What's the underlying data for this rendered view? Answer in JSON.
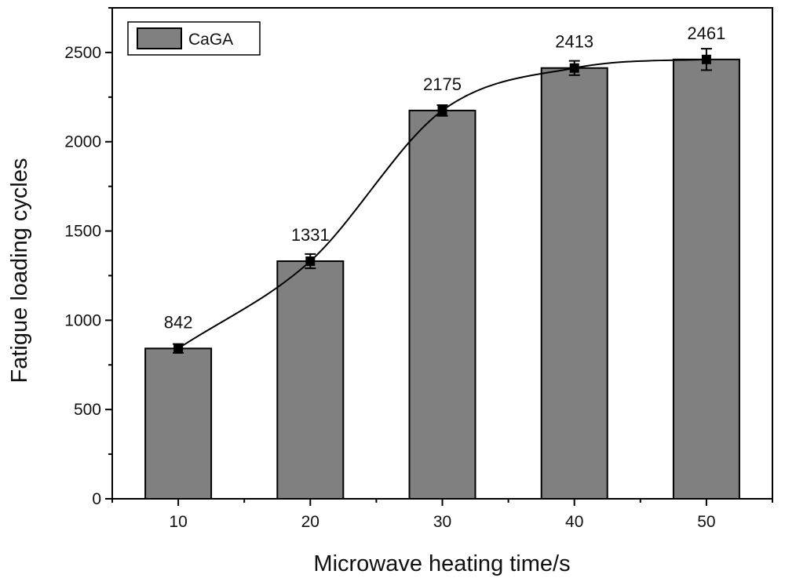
{
  "chart_data": {
    "type": "bar",
    "title": "",
    "xlabel": "Microwave heating time/s",
    "ylabel": "Fatigue loading cycles",
    "categories": [
      "10",
      "20",
      "30",
      "40",
      "50"
    ],
    "series": [
      {
        "name": "CaGA",
        "values": [
          842,
          1331,
          2175,
          2413,
          2461
        ],
        "labels": [
          "842",
          "1331",
          "2175",
          "2413",
          "2461"
        ],
        "error": [
          25,
          40,
          30,
          40,
          60
        ],
        "color": "#808080"
      }
    ],
    "ylim": [
      0,
      2750
    ],
    "yticks": [
      0,
      500,
      1000,
      1500,
      2000,
      2500
    ],
    "ytick_labels": [
      "0",
      "500",
      "1000",
      "1500",
      "2000",
      "2500"
    ],
    "grid": false,
    "legend_position": "top-left",
    "fit_curve": "smooth sigmoid trend through bar means"
  }
}
